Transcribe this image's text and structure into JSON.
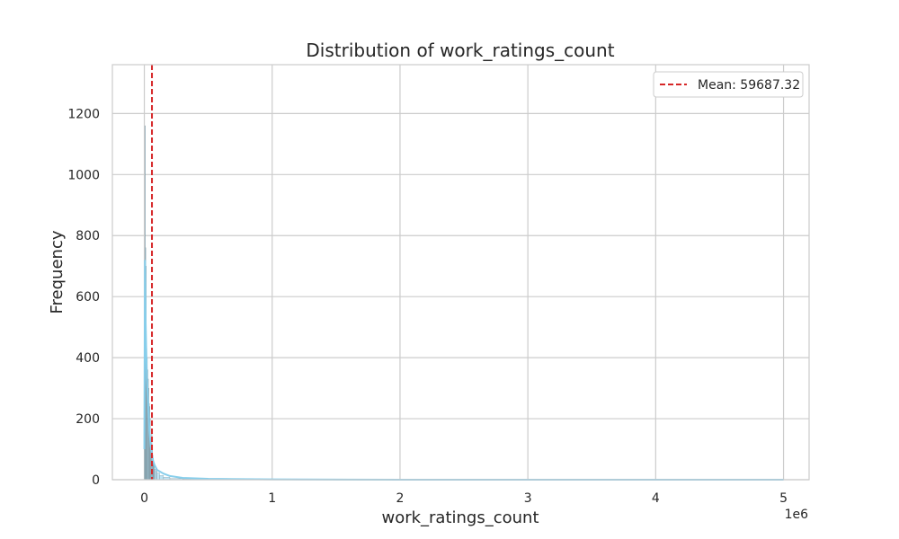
{
  "chart_data": {
    "type": "histogram",
    "title": "Distribution of work_ratings_count",
    "xlabel": "work_ratings_count",
    "ylabel": "Frequency",
    "x_offset_label": "1e6",
    "xlim": [
      -250000,
      5200000
    ],
    "ylim": [
      0,
      1360
    ],
    "x_ticks": [
      0,
      1000000,
      2000000,
      3000000,
      4000000,
      5000000
    ],
    "x_tick_labels": [
      "0",
      "1",
      "2",
      "3",
      "4",
      "5"
    ],
    "y_ticks": [
      0,
      200,
      400,
      600,
      800,
      1000,
      1200
    ],
    "y_tick_labels": [
      "0",
      "200",
      "400",
      "600",
      "800",
      "1000",
      "1200"
    ],
    "grid": true,
    "legend_position": "upper-right",
    "mean": {
      "value": 59687.32,
      "label": "Mean: 59687.32",
      "color": "#d62728",
      "style": "dashed"
    },
    "histogram": {
      "color": "#87ceeb",
      "bins": [
        {
          "x0": 0,
          "x1": 4000,
          "count": 280
        },
        {
          "x0": 4000,
          "x1": 8000,
          "count": 1160
        },
        {
          "x0": 8000,
          "x1": 12000,
          "count": 760
        },
        {
          "x0": 12000,
          "x1": 16000,
          "count": 700
        },
        {
          "x0": 16000,
          "x1": 20000,
          "count": 430
        },
        {
          "x0": 20000,
          "x1": 24000,
          "count": 400
        },
        {
          "x0": 24000,
          "x1": 28000,
          "count": 360
        },
        {
          "x0": 28000,
          "x1": 32000,
          "count": 330
        },
        {
          "x0": 32000,
          "x1": 36000,
          "count": 300
        },
        {
          "x0": 36000,
          "x1": 40000,
          "count": 250
        },
        {
          "x0": 40000,
          "x1": 44000,
          "count": 240
        },
        {
          "x0": 44000,
          "x1": 48000,
          "count": 200
        },
        {
          "x0": 48000,
          "x1": 52000,
          "count": 120
        },
        {
          "x0": 52000,
          "x1": 56000,
          "count": 90
        },
        {
          "x0": 56000,
          "x1": 60000,
          "count": 150
        },
        {
          "x0": 60000,
          "x1": 64000,
          "count": 110
        },
        {
          "x0": 64000,
          "x1": 68000,
          "count": 80
        },
        {
          "x0": 68000,
          "x1": 72000,
          "count": 70
        },
        {
          "x0": 72000,
          "x1": 76000,
          "count": 55
        },
        {
          "x0": 76000,
          "x1": 80000,
          "count": 45
        },
        {
          "x0": 80000,
          "x1": 90000,
          "count": 35
        },
        {
          "x0": 90000,
          "x1": 100000,
          "count": 28
        },
        {
          "x0": 100000,
          "x1": 120000,
          "count": 22
        },
        {
          "x0": 120000,
          "x1": 150000,
          "count": 14
        },
        {
          "x0": 150000,
          "x1": 200000,
          "count": 8
        },
        {
          "x0": 200000,
          "x1": 300000,
          "count": 4
        },
        {
          "x0": 300000,
          "x1": 500000,
          "count": 2
        },
        {
          "x0": 500000,
          "x1": 1000000,
          "count": 1
        }
      ]
    },
    "kde": {
      "color": "#87ceeb",
      "points": [
        [
          0,
          100
        ],
        [
          5000,
          720
        ],
        [
          10000,
          520
        ],
        [
          15000,
          420
        ],
        [
          20000,
          330
        ],
        [
          30000,
          250
        ],
        [
          40000,
          160
        ],
        [
          50000,
          110
        ],
        [
          60000,
          80
        ],
        [
          70000,
          60
        ],
        [
          80000,
          48
        ],
        [
          100000,
          32
        ],
        [
          150000,
          20
        ],
        [
          200000,
          12
        ],
        [
          300000,
          6
        ],
        [
          500000,
          3
        ],
        [
          1000000,
          1
        ],
        [
          2000000,
          0
        ],
        [
          3000000,
          0
        ],
        [
          4000000,
          0
        ],
        [
          5000000,
          0
        ]
      ]
    }
  }
}
